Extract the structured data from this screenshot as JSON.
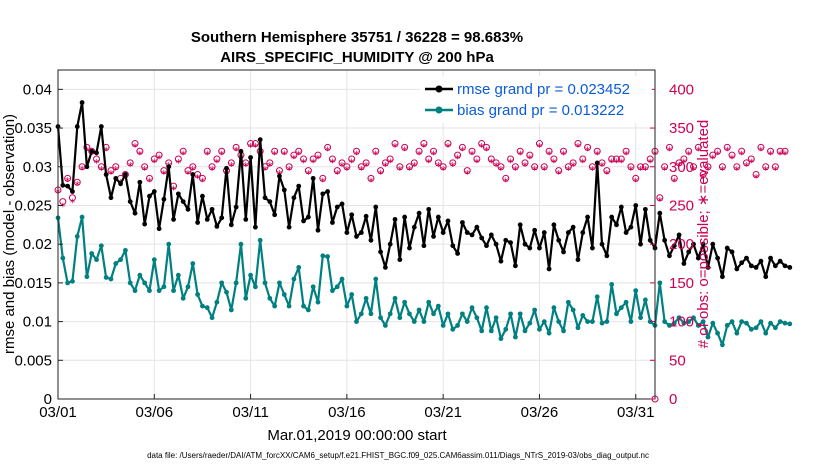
{
  "chart_data": {
    "type": "line",
    "title": "Southern Hemisphere 35751 / 36228 = 98.683%",
    "subtitle": "AIRS_SPECIFIC_HUMIDITY @ 200 hPa",
    "xlabel": "Mar.01,2019 00:00:00 start",
    "ylabel": "rmse and bias (model - observation)",
    "y2label": "# of obs: o=possible; ∗=evaluated",
    "footnote": "data file: /Users/raeder/DAI/ATM_forcXX/CAM6_setup/f.e21.FHIST_BGC.f09_025.CAM6assim.011/Diags_NTrS_2019-03/obs_diag_output.nc",
    "x_ticks": [
      "03/01",
      "03/06",
      "03/11",
      "03/16",
      "03/21",
      "03/26",
      "03/31"
    ],
    "x_tick_days": [
      0,
      5,
      10,
      15,
      20,
      25,
      30
    ],
    "xlim": [
      0,
      31
    ],
    "ylim": [
      0,
      0.0425
    ],
    "y_ticks": [
      "0",
      "0.005",
      "0.01",
      "0.015",
      "0.02",
      "0.025",
      "0.03",
      "0.035",
      "0.04"
    ],
    "y_tick_values": [
      0,
      0.005,
      0.01,
      0.015,
      0.02,
      0.025,
      0.03,
      0.035,
      0.04
    ],
    "y2lim": [
      0,
      425
    ],
    "y2_ticks": [
      "0",
      "50",
      "100",
      "150",
      "200",
      "250",
      "300",
      "350",
      "400"
    ],
    "y2_tick_values": [
      0,
      50,
      100,
      150,
      200,
      250,
      300,
      350,
      400
    ],
    "colors": {
      "rmse": "#000000",
      "bias": "#008080",
      "obs": "#cc0055",
      "legend_text": "#0a5cd6"
    },
    "legend": [
      {
        "name": "rmse grand pr = 0.023452",
        "series": "rmse"
      },
      {
        "name": "bias grand pr = 0.013222",
        "series": "bias"
      }
    ],
    "legend_position": "top-right",
    "step_days": 0.25,
    "series": [
      {
        "name": "rmse",
        "values": [
          0.0352,
          0.0276,
          0.0275,
          0.0268,
          0.0352,
          0.0383,
          0.03,
          0.032,
          0.0318,
          0.0352,
          0.029,
          0.026,
          0.0285,
          0.0278,
          0.029,
          0.0255,
          0.024,
          0.028,
          0.0226,
          0.0262,
          0.0268,
          0.022,
          0.0258,
          0.03,
          0.0232,
          0.0265,
          0.0255,
          0.0245,
          0.029,
          0.0228,
          0.0262,
          0.0232,
          0.0245,
          0.0223,
          0.0234,
          0.0298,
          0.0225,
          0.0248,
          0.032,
          0.0232,
          0.0312,
          0.0222,
          0.0335,
          0.026,
          0.0255,
          0.0238,
          0.0288,
          0.027,
          0.0222,
          0.026,
          0.0275,
          0.023,
          0.0235,
          0.0285,
          0.0218,
          0.0265,
          0.0268,
          0.0228,
          0.0248,
          0.0252,
          0.0215,
          0.0238,
          0.021,
          0.0215,
          0.0236,
          0.0205,
          0.0248,
          0.019,
          0.017,
          0.02,
          0.0232,
          0.018,
          0.0235,
          0.0195,
          0.0222,
          0.024,
          0.0198,
          0.0245,
          0.021,
          0.0235,
          0.0215,
          0.023,
          0.0198,
          0.0188,
          0.0228,
          0.0215,
          0.0212,
          0.0222,
          0.0208,
          0.0198,
          0.0212,
          0.02,
          0.0178,
          0.0205,
          0.0202,
          0.0172,
          0.0225,
          0.02,
          0.0195,
          0.0218,
          0.0195,
          0.0215,
          0.0168,
          0.0225,
          0.0205,
          0.019,
          0.0215,
          0.0222,
          0.018,
          0.0215,
          0.0235,
          0.0195,
          0.0305,
          0.02,
          0.0185,
          0.0235,
          0.0225,
          0.0248,
          0.0215,
          0.0222,
          0.025,
          0.02,
          0.0245,
          0.0205,
          0.0195,
          0.024,
          0.0205,
          0.0185,
          0.0198,
          0.0212,
          0.0175,
          0.019,
          0.02,
          0.0182,
          0.02,
          0.017,
          0.02,
          0.0182,
          0.0158,
          0.0195,
          0.019,
          0.0168,
          0.0176,
          0.0182,
          0.0172,
          0.017,
          0.0178,
          0.0158,
          0.0182,
          0.0172,
          0.0178,
          0.0172,
          0.017
        ]
      },
      {
        "name": "bias",
        "values": [
          0.0234,
          0.0182,
          0.015,
          0.0152,
          0.021,
          0.0235,
          0.0158,
          0.0188,
          0.018,
          0.0198,
          0.0157,
          0.0155,
          0.0175,
          0.018,
          0.0192,
          0.015,
          0.014,
          0.016,
          0.015,
          0.014,
          0.018,
          0.014,
          0.0145,
          0.02,
          0.014,
          0.016,
          0.013,
          0.0145,
          0.0175,
          0.0135,
          0.012,
          0.0118,
          0.0105,
          0.0125,
          0.015,
          0.0138,
          0.0115,
          0.015,
          0.02,
          0.013,
          0.016,
          0.0145,
          0.0205,
          0.015,
          0.013,
          0.012,
          0.015,
          0.0135,
          0.012,
          0.0155,
          0.017,
          0.012,
          0.0115,
          0.0145,
          0.0125,
          0.0185,
          0.0184,
          0.014,
          0.0145,
          0.0155,
          0.012,
          0.0135,
          0.01,
          0.011,
          0.013,
          0.011,
          0.0155,
          0.0105,
          0.0095,
          0.011,
          0.013,
          0.0105,
          0.0125,
          0.011,
          0.01,
          0.0115,
          0.01,
          0.0125,
          0.011,
          0.012,
          0.0095,
          0.011,
          0.009,
          0.0095,
          0.011,
          0.01,
          0.0118,
          0.0105,
          0.0088,
          0.0118,
          0.0088,
          0.0105,
          0.0078,
          0.009,
          0.011,
          0.008,
          0.011,
          0.0088,
          0.0098,
          0.0115,
          0.009,
          0.01,
          0.0085,
          0.0118,
          0.01,
          0.0088,
          0.0125,
          0.0115,
          0.0092,
          0.0108,
          0.01,
          0.01,
          0.0132,
          0.0098,
          0.01,
          0.0148,
          0.011,
          0.0118,
          0.0125,
          0.01,
          0.014,
          0.0105,
          0.0128,
          0.01,
          0.0095,
          0.015,
          0.01,
          0.0095,
          0.0098,
          0.0105,
          0.0098,
          0.01,
          0.0105,
          0.0095,
          0.01,
          0.008,
          0.0098,
          0.0085,
          0.007,
          0.0095,
          0.01,
          0.0085,
          0.01,
          0.0098,
          0.009,
          0.0092,
          0.01,
          0.0085,
          0.0098,
          0.0092,
          0.01,
          0.0098,
          0.0097
        ]
      },
      {
        "name": "obs_possible",
        "values": [
          270,
          255,
          285,
          260,
          280,
          300,
          325,
          320,
          310,
          300,
          325,
          295,
          300,
          285,
          290,
          305,
          330,
          320,
          300,
          285,
          310,
          315,
          295,
          305,
          275,
          310,
          320,
          295,
          300,
          290,
          285,
          320,
          300,
          310,
          320,
          295,
          305,
          325,
          315,
          305,
          330,
          330,
          320,
          300,
          305,
          320,
          295,
          320,
          300,
          315,
          320,
          310,
          295,
          310,
          315,
          285,
          325,
          310,
          295,
          305,
          300,
          310,
          320,
          300,
          305,
          285,
          320,
          295,
          305,
          310,
          330,
          300,
          325,
          300,
          305,
          320,
          330,
          310,
          320,
          305,
          300,
          330,
          305,
          315,
          325,
          295,
          320,
          310,
          330,
          325,
          310,
          305,
          300,
          285,
          310,
          300,
          320,
          305,
          315,
          300,
          330,
          300,
          320,
          310,
          295,
          320,
          300,
          305,
          330,
          310,
          325,
          300,
          320,
          305,
          295,
          310,
          310,
          310,
          320,
          300,
          285,
          300,
          300,
          310,
          320,
          260,
          300,
          325,
          285,
          305,
          310,
          320,
          300,
          325,
          290,
          300,
          315,
          320,
          300,
          325,
          315,
          300,
          320,
          305,
          310,
          290,
          325,
          300,
          320,
          300,
          320,
          320
        ]
      },
      {
        "name": "obs_evaluated",
        "values": [
          268,
          250,
          283,
          255,
          278,
          298,
          322,
          318,
          306,
          297,
          322,
          292,
          297,
          280,
          287,
          302,
          327,
          317,
          297,
          282,
          307,
          312,
          292,
          302,
          272,
          306,
          317,
          292,
          297,
          287,
          282,
          317,
          297,
          307,
          317,
          292,
          302,
          322,
          312,
          302,
          327,
          327,
          317,
          297,
          302,
          317,
          292,
          317,
          297,
          312,
          317,
          307,
          292,
          307,
          312,
          282,
          322,
          307,
          292,
          302,
          297,
          307,
          317,
          297,
          302,
          282,
          317,
          292,
          302,
          307,
          327,
          297,
          322,
          297,
          302,
          317,
          327,
          307,
          317,
          302,
          297,
          327,
          302,
          312,
          322,
          292,
          317,
          307,
          327,
          322,
          307,
          302,
          297,
          282,
          307,
          297,
          317,
          302,
          312,
          297,
          327,
          297,
          317,
          307,
          292,
          317,
          297,
          302,
          327,
          307,
          322,
          297,
          317,
          302,
          292,
          307,
          307,
          307,
          317,
          297,
          282,
          297,
          297,
          307,
          317,
          257,
          297,
          322,
          282,
          302,
          307,
          317,
          297,
          322,
          287,
          297,
          312,
          317,
          297,
          322,
          312,
          297,
          317,
          302,
          307,
          287,
          322,
          297,
          317,
          297,
          317,
          317
        ]
      }
    ]
  }
}
